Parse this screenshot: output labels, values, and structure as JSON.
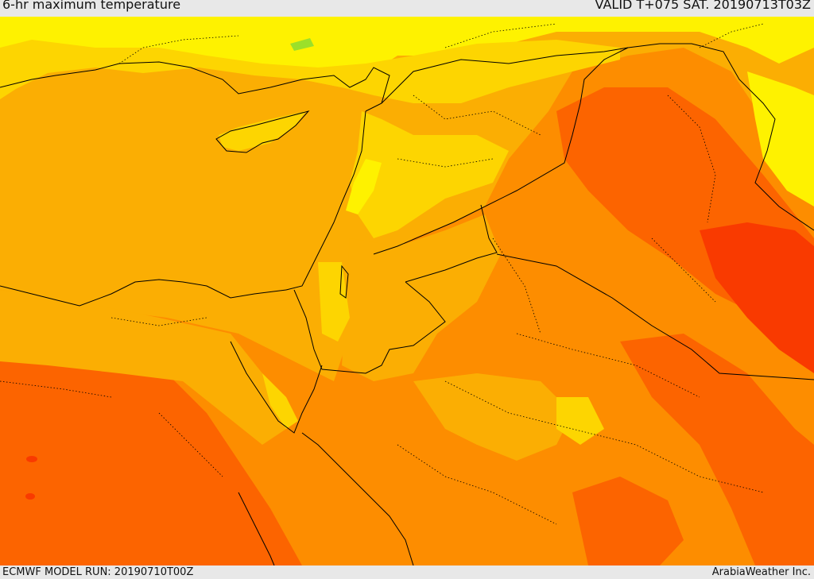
{
  "header": {
    "title": "6-hr maximum temperature",
    "valid": "VALID T+075 SAT. 20190713T03Z"
  },
  "footer": {
    "model_run": "ECMWF MODEL RUN: 20190710T00Z",
    "credit": "ArabiaWeather Inc."
  },
  "colors": {
    "sea": "#fbae03",
    "yellow": "#fef200",
    "light_yellow": "#fdd501",
    "orange": "#fd8d00",
    "dark_orange": "#fc6400",
    "red": "#f93a00",
    "green": "#9be02a",
    "border": "#000000"
  }
}
